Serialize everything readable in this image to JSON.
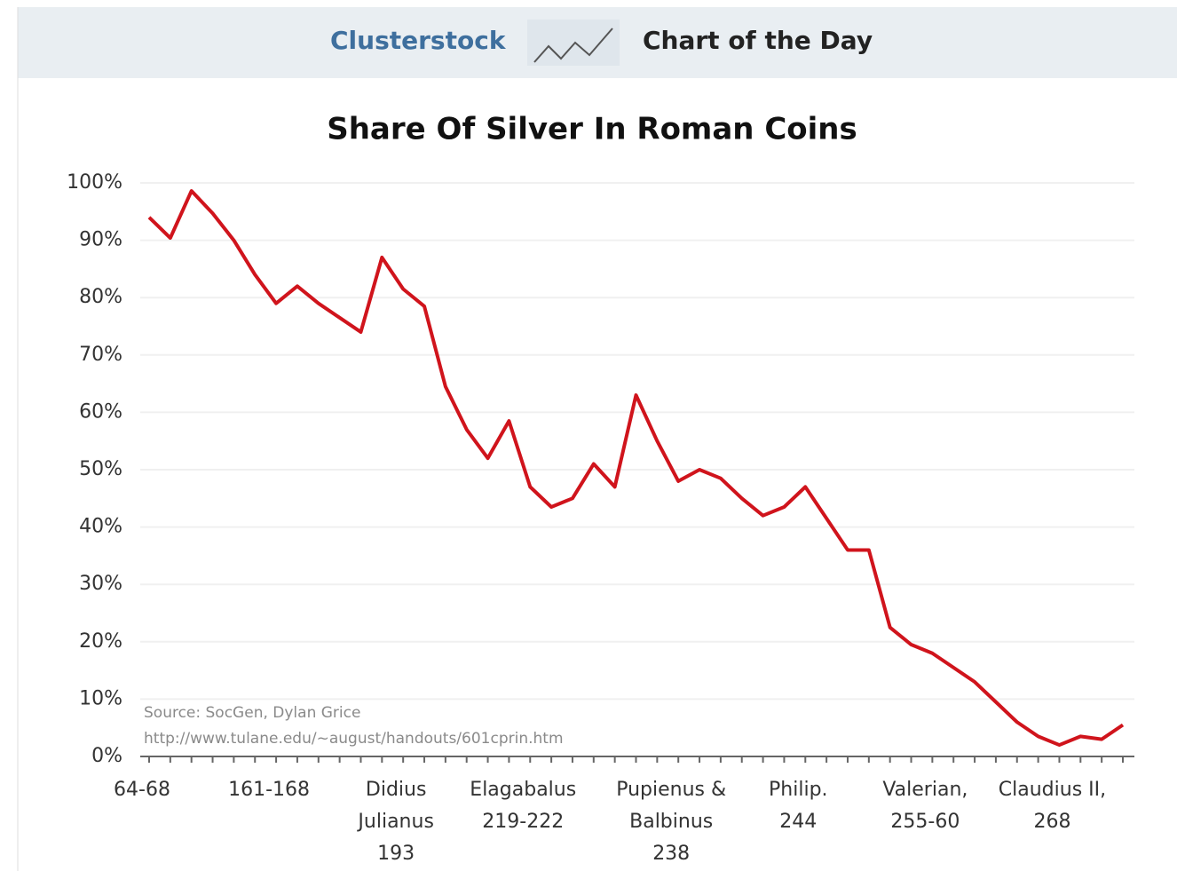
{
  "header": {
    "brand": "Clusterstock",
    "section": "Chart of the Day"
  },
  "chart_data": {
    "type": "line",
    "title": "Share Of Silver In Roman Coins",
    "categories": [
      "64-68",
      null,
      null,
      null,
      null,
      null,
      "161-168",
      null,
      null,
      null,
      null,
      null,
      "Didius\nJulianus\n193",
      null,
      null,
      null,
      null,
      null,
      "Elagabalus\n219-222",
      null,
      null,
      null,
      null,
      null,
      null,
      "Pupienus &\nBalbinus\n238",
      null,
      null,
      null,
      null,
      null,
      "Philip.\n244",
      null,
      null,
      null,
      null,
      null,
      "Valerian,\n255-60",
      null,
      null,
      null,
      null,
      null,
      "Claudius II,\n268",
      null,
      null,
      null
    ],
    "series": [
      {
        "name": "Share of silver",
        "color": "#d0141c",
        "values": [
          94,
          90.4,
          98.6,
          94.7,
          90,
          84,
          79,
          82,
          79,
          76.5,
          74,
          87,
          81.5,
          78.5,
          64.5,
          57,
          52,
          58.5,
          47,
          43.5,
          45,
          51,
          47,
          63,
          55,
          48,
          50,
          48.5,
          45,
          42,
          43.5,
          47,
          41.5,
          36,
          36,
          22.5,
          19.5,
          18,
          15.5,
          13,
          9.5,
          6,
          3.5,
          2,
          3.5,
          3,
          5.5
        ]
      }
    ],
    "ylim": [
      0,
      100
    ],
    "yticks": [
      {
        "value": 0,
        "label": "0%"
      },
      {
        "value": 10,
        "label": "10%"
      },
      {
        "value": 20,
        "label": "20%"
      },
      {
        "value": 30,
        "label": "30%"
      },
      {
        "value": 40,
        "label": "40%"
      },
      {
        "value": 50,
        "label": "50%"
      },
      {
        "value": 60,
        "label": "60%"
      },
      {
        "value": 70,
        "label": "70%"
      },
      {
        "value": 80,
        "label": "80%"
      },
      {
        "value": 90,
        "label": "90%"
      },
      {
        "value": 100,
        "label": "100%"
      }
    ],
    "grid": true,
    "source": "Source: SocGen, Dylan Grice",
    "source_url": "http://www.tulane.edu/~august/handouts/601cprin.htm"
  }
}
